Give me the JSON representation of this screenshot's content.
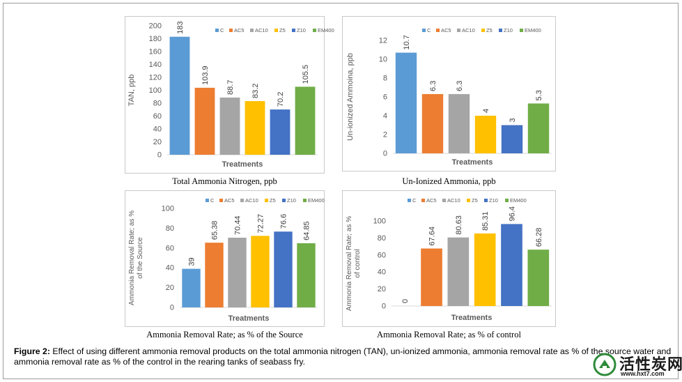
{
  "legend": [
    "C",
    "AC5",
    "AC10",
    "Z5",
    "Z10",
    "EM400"
  ],
  "colors": {
    "C": "#5b9bd5",
    "AC5": "#ed7d31",
    "AC10": "#a5a5a5",
    "Z5": "#ffc000",
    "Z10": "#4472c4",
    "EM400": "#70ad47",
    "axis_text": "#595959",
    "gridline": "#d9d9d9"
  },
  "caption": {
    "label": "Figure 2:",
    "text": " Effect of using different ammonia removal products on the total ammonia nitrogen (TAN), un-ionized ammonia, ammonia removal rate as % of the source water and ammonia removal rate as % of the control in the rearing tanks of seabass fry."
  },
  "logo": {
    "name": "活性炭网",
    "url": "www.hxt7.com"
  },
  "chart_data": [
    {
      "type": "bar",
      "title": "Total Ammonia Nitrogen, ppb",
      "xlabel": "Treatments",
      "ylabel": "TAN, ppb",
      "categories": [
        "C",
        "AC5",
        "AC10",
        "Z5",
        "Z10",
        "EM400"
      ],
      "values": [
        183,
        103.9,
        88.7,
        83.2,
        70.2,
        105.5
      ],
      "value_labels": [
        "183",
        "103.9",
        "88.7",
        "83.2",
        "70.2",
        "105.5"
      ],
      "ylim": [
        0,
        200
      ],
      "yticks": [
        0,
        20,
        40,
        60,
        80,
        100,
        120,
        140,
        160,
        180,
        200
      ],
      "legend_position": "top-right"
    },
    {
      "type": "bar",
      "title": "Un-Ionized Ammonia, ppb",
      "xlabel": "Treatments",
      "ylabel": "Un-ionized Ammoina, ppb",
      "categories": [
        "C",
        "AC5",
        "AC10",
        "Z5",
        "Z10",
        "EM400"
      ],
      "values": [
        10.7,
        6.3,
        6.3,
        4,
        3,
        5.3
      ],
      "value_labels": [
        "10.7",
        "6.3",
        "6.3",
        "4",
        "3",
        "5.3"
      ],
      "ylim": [
        0,
        12
      ],
      "yticks": [
        0,
        2,
        4,
        6,
        8,
        10,
        12
      ],
      "legend_position": "top-right"
    },
    {
      "type": "bar",
      "title": "Ammonia Removal Rate; as % of the Source",
      "xlabel": "Treatments",
      "ylabel_lines": [
        "Ammonia Removal Rate; as %",
        "of the Source"
      ],
      "categories": [
        "C",
        "AC5",
        "AC10",
        "Z5",
        "Z10",
        "EM400"
      ],
      "values": [
        39,
        65.38,
        70.44,
        72.27,
        76.6,
        64.85
      ],
      "value_labels": [
        "39",
        "65.38",
        "70.44",
        "72.27",
        "76.6",
        "64.85"
      ],
      "ylim": [
        0,
        100
      ],
      "yticks": [
        0,
        20,
        40,
        60,
        80,
        100
      ],
      "legend_position": "top-right"
    },
    {
      "type": "bar",
      "title": "Ammonia Removal Rate; as % of control",
      "xlabel": "Treatments",
      "ylabel_lines": [
        "Ammonia Removal Rate; as %",
        "of control"
      ],
      "categories": [
        "C",
        "AC5",
        "AC10",
        "Z5",
        "Z10",
        "EM400"
      ],
      "values": [
        0,
        67.64,
        80.63,
        85.31,
        96.4,
        66.28
      ],
      "value_labels": [
        "0",
        "67.64",
        "80.63",
        "85.31",
        "96.4",
        "66.28"
      ],
      "ylim": [
        0,
        100
      ],
      "yticks": [
        0,
        20,
        40,
        60,
        80,
        100
      ],
      "legend_position": "top-right"
    }
  ]
}
